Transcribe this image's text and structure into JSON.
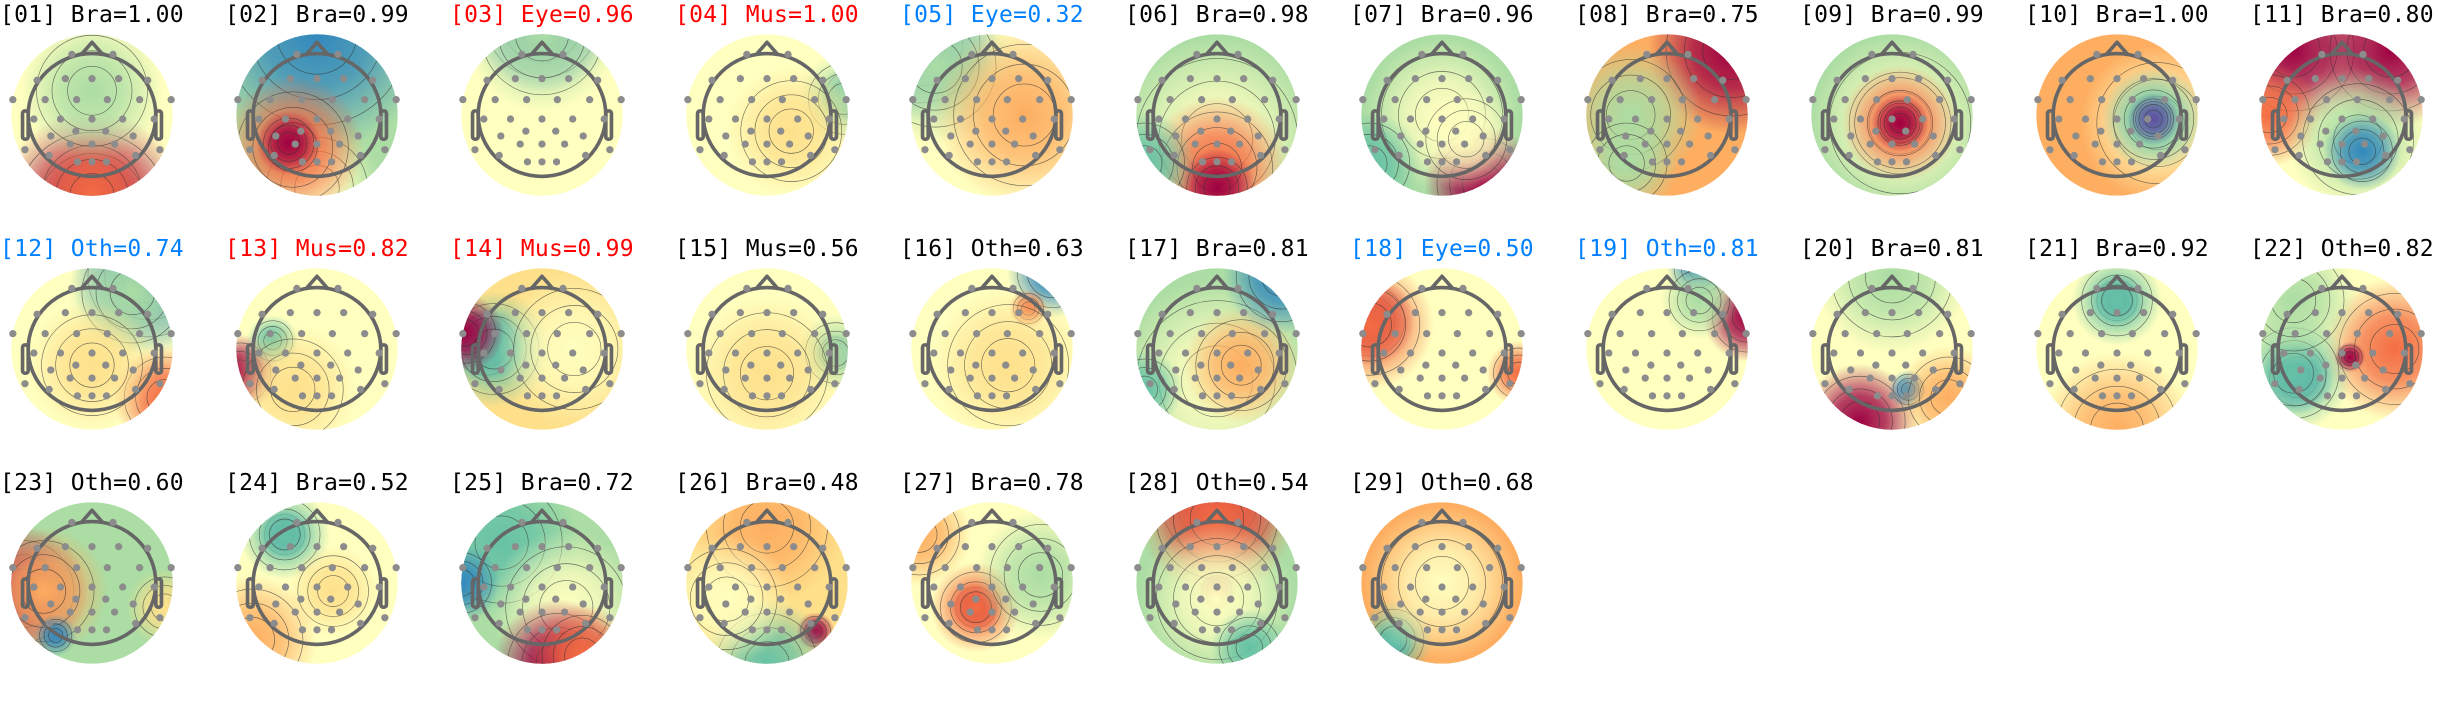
{
  "chart_data": {
    "type": "heatmap",
    "colors": {
      "brain": "#000000",
      "flagged": "#ff0000",
      "uncertain": "#0080ff"
    },
    "colormap": [
      "#5e4fa2",
      "#3288bd",
      "#66c2a5",
      "#abdda4",
      "#e6f598",
      "#ffffbf",
      "#fee08b",
      "#fdae61",
      "#f46d43",
      "#d53e4f",
      "#9e0142"
    ],
    "components": [
      {
        "title": "[01] Bra=1.00",
        "label": "Bra",
        "score": 1.0,
        "color": "#000000"
      },
      {
        "title": "[02] Bra=0.99",
        "label": "Bra",
        "score": 0.99,
        "color": "#000000"
      },
      {
        "title": "[03] Eye=0.96",
        "label": "Eye",
        "score": 0.96,
        "color": "#ff0000"
      },
      {
        "title": "[04] Mus=1.00",
        "label": "Mus",
        "score": 1.0,
        "color": "#ff0000"
      },
      {
        "title": "[05] Eye=0.32",
        "label": "Eye",
        "score": 0.32,
        "color": "#0080ff"
      },
      {
        "title": "[06] Bra=0.98",
        "label": "Bra",
        "score": 0.98,
        "color": "#000000"
      },
      {
        "title": "[07] Bra=0.96",
        "label": "Bra",
        "score": 0.96,
        "color": "#000000"
      },
      {
        "title": "[08] Bra=0.75",
        "label": "Bra",
        "score": 0.75,
        "color": "#000000"
      },
      {
        "title": "[09] Bra=0.99",
        "label": "Bra",
        "score": 0.99,
        "color": "#000000"
      },
      {
        "title": "[10] Bra=1.00",
        "label": "Bra",
        "score": 1.0,
        "color": "#000000"
      },
      {
        "title": "[11] Bra=0.80",
        "label": "Bra",
        "score": 0.8,
        "color": "#000000"
      },
      {
        "title": "[12] Oth=0.74",
        "label": "Oth",
        "score": 0.74,
        "color": "#0080ff"
      },
      {
        "title": "[13] Mus=0.82",
        "label": "Mus",
        "score": 0.82,
        "color": "#ff0000"
      },
      {
        "title": "[14] Mus=0.99",
        "label": "Mus",
        "score": 0.99,
        "color": "#ff0000"
      },
      {
        "title": "[15] Mus=0.56",
        "label": "Mus",
        "score": 0.56,
        "color": "#000000"
      },
      {
        "title": "[16] Oth=0.63",
        "label": "Oth",
        "score": 0.63,
        "color": "#000000"
      },
      {
        "title": "[17] Bra=0.81",
        "label": "Bra",
        "score": 0.81,
        "color": "#000000"
      },
      {
        "title": "[18] Eye=0.50",
        "label": "Eye",
        "score": 0.5,
        "color": "#0080ff"
      },
      {
        "title": "[19] Oth=0.81",
        "label": "Oth",
        "score": 0.81,
        "color": "#0080ff"
      },
      {
        "title": "[20] Bra=0.81",
        "label": "Bra",
        "score": 0.81,
        "color": "#000000"
      },
      {
        "title": "[21] Bra=0.92",
        "label": "Bra",
        "score": 0.92,
        "color": "#000000"
      },
      {
        "title": "[22] Oth=0.82",
        "label": "Oth",
        "score": 0.82,
        "color": "#000000"
      },
      {
        "title": "[23] Oth=0.60",
        "label": "Oth",
        "score": 0.6,
        "color": "#000000"
      },
      {
        "title": "[24] Bra=0.52",
        "label": "Bra",
        "score": 0.52,
        "color": "#000000"
      },
      {
        "title": "[25] Bra=0.72",
        "label": "Bra",
        "score": 0.72,
        "color": "#000000"
      },
      {
        "title": "[26] Bra=0.48",
        "label": "Bra",
        "score": 0.48,
        "color": "#000000"
      },
      {
        "title": "[27] Bra=0.78",
        "label": "Bra",
        "score": 0.78,
        "color": "#000000"
      },
      {
        "title": "[28] Oth=0.54",
        "label": "Oth",
        "score": 0.54,
        "color": "#000000"
      },
      {
        "title": "[29] Oth=0.68",
        "label": "Oth",
        "score": 0.68,
        "color": "#000000"
      }
    ]
  }
}
